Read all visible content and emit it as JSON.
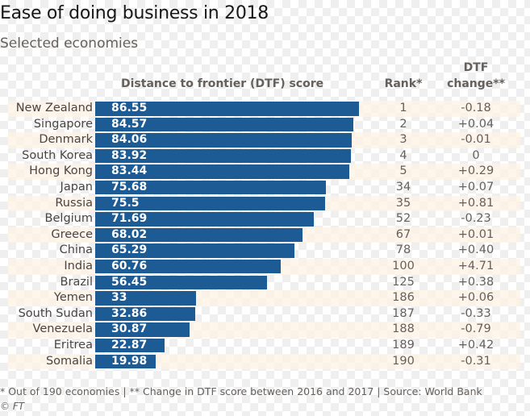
{
  "chart_data": {
    "type": "bar",
    "orientation": "horizontal",
    "title": "Ease of doing business in 2018",
    "subtitle": "Selected economies",
    "xlabel": "Distance to frontier (DTF) score",
    "ylabel": "",
    "xlim": [
      0,
      100
    ],
    "grid": false,
    "bar_color": "#1d5b94",
    "columns": {
      "score": "Distance to frontier (DTF) score",
      "rank": "Rank*",
      "change_line1": "DTF",
      "change_line2": "change**"
    },
    "categories": [
      "New Zealand",
      "Singapore",
      "Denmark",
      "South Korea",
      "Hong Kong",
      "Japan",
      "Russia",
      "Belgium",
      "Greece",
      "China",
      "India",
      "Brazil",
      "Yemen",
      "South Sudan",
      "Venezuela",
      "Eritrea",
      "Somalia"
    ],
    "values": [
      86.55,
      84.57,
      84.06,
      83.92,
      83.44,
      75.68,
      75.5,
      71.69,
      68.02,
      65.29,
      60.76,
      56.45,
      33,
      32.86,
      30.87,
      22.87,
      19.98
    ],
    "value_labels": [
      "86.55",
      "84.57",
      "84.06",
      "83.92",
      "83.44",
      "75.68",
      "75.5",
      "71.69",
      "68.02",
      "65.29",
      "60.76",
      "56.45",
      "33",
      "32.86",
      "30.87",
      "22.87",
      "19.98"
    ],
    "ranks": [
      "1",
      "2",
      "3",
      "4",
      "5",
      "34",
      "35",
      "52",
      "67",
      "78",
      "100",
      "125",
      "186",
      "187",
      "188",
      "189",
      "190"
    ],
    "dtf_change": [
      "-0.18",
      "+0.04",
      "-0.01",
      "0",
      "+0.29",
      "+0.07",
      "+0.81",
      "-0.23",
      "+0.01",
      "+0.40",
      "+4.71",
      "+0.38",
      "+0.06",
      "-0.33",
      "-0.79",
      "+0.42",
      "-0.31"
    ],
    "footnote": "* Out of 190 economies | ** Change in DTF score between 2016 and 2017 | Source: World Bank",
    "credit": "© FT"
  }
}
